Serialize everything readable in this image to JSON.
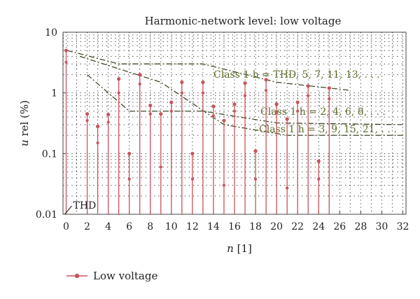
{
  "chart_data": {
    "type": "stem",
    "title": "Harmonic-network level: low voltage",
    "xlabel_italic": "n",
    "xlabel_rest": " [1]",
    "ylabel_italic": "u",
    "ylabel_rest": " rel (%)",
    "y_scale": "log",
    "ylim": [
      0.01,
      10
    ],
    "xlim": [
      -0.3,
      32.3
    ],
    "x_ticks": [
      0,
      2,
      4,
      6,
      8,
      10,
      12,
      14,
      16,
      18,
      20,
      22,
      24,
      26,
      28,
      30,
      32
    ],
    "y_ticks": [
      {
        "value": 0.01,
        "label": "0.01"
      },
      {
        "value": 0.1,
        "label": "0.1"
      },
      {
        "value": 1,
        "label": "1"
      },
      {
        "value": 10,
        "label": "10"
      }
    ],
    "legend_position": "bottom-left",
    "series": [
      {
        "name": "Low voltage",
        "color": "#c9545a",
        "points": [
          {
            "x": 0,
            "top": 5.0,
            "lower": 3.2
          },
          {
            "x": 2,
            "top": 0.45,
            "lower": 0.35
          },
          {
            "x": 3,
            "top": 0.28,
            "lower": 0.15
          },
          {
            "x": 4,
            "top": 0.44,
            "lower": 0.33
          },
          {
            "x": 5,
            "top": 1.7,
            "lower": 1.0
          },
          {
            "x": 6,
            "top": 0.1,
            "lower": 0.038
          },
          {
            "x": 7,
            "top": 2.0,
            "lower": 1.4
          },
          {
            "x": 8,
            "top": 0.62,
            "lower": 0.45
          },
          {
            "x": 9,
            "top": 0.45,
            "lower": 0.06
          },
          {
            "x": 10,
            "top": 0.7,
            "lower": 0.5
          },
          {
            "x": 11,
            "top": 1.5,
            "lower": 1.0
          },
          {
            "x": 12,
            "top": 0.1,
            "lower": 0.038
          },
          {
            "x": 13,
            "top": 1.5,
            "lower": 1.0
          },
          {
            "x": 14,
            "top": 0.6,
            "lower": 0.42
          },
          {
            "x": 15,
            "top": 0.35,
            "lower": 0.03
          },
          {
            "x": 16,
            "top": 0.65,
            "lower": 0.5
          },
          {
            "x": 17,
            "top": 1.45,
            "lower": 0.9
          },
          {
            "x": 18,
            "top": 0.11,
            "lower": 0.038
          },
          {
            "x": 19,
            "top": 1.65,
            "lower": 1.1
          },
          {
            "x": 20,
            "top": 0.65,
            "lower": 0.48
          },
          {
            "x": 21,
            "top": 0.37,
            "lower": 0.027
          },
          {
            "x": 22,
            "top": 0.7,
            "lower": 0.5
          },
          {
            "x": 23,
            "top": 1.3,
            "lower": 0.9
          },
          {
            "x": 24,
            "top": 0.075,
            "lower": 0.038
          },
          {
            "x": 25,
            "top": 1.2,
            "lower": 0.8
          }
        ]
      }
    ],
    "limit_lines": [
      {
        "label": "Class 1 h = THD, 5, 7, 11, 13, . . .",
        "points": [
          [
            0.1,
            5.0
          ],
          [
            5,
            3.0
          ],
          [
            13,
            3.0
          ],
          [
            20,
            1.5
          ],
          [
            27,
            1.1
          ]
        ]
      },
      {
        "label": "Class 1 h = 2, 4, 6, 8, . . .",
        "points": [
          [
            2,
            2.0
          ],
          [
            6,
            0.5
          ],
          [
            13,
            0.5
          ],
          [
            20,
            0.32
          ],
          [
            32,
            0.3
          ]
        ]
      },
      {
        "label": "Class 1 h = 3, 9, 15, 21, . . .",
        "points": [
          [
            1.3,
            4.0
          ],
          [
            9,
            1.5
          ],
          [
            15,
            0.3
          ],
          [
            21,
            0.2
          ],
          [
            32,
            0.2
          ]
        ]
      }
    ],
    "annotations": [
      {
        "text": "THD",
        "x": 0
      }
    ]
  }
}
